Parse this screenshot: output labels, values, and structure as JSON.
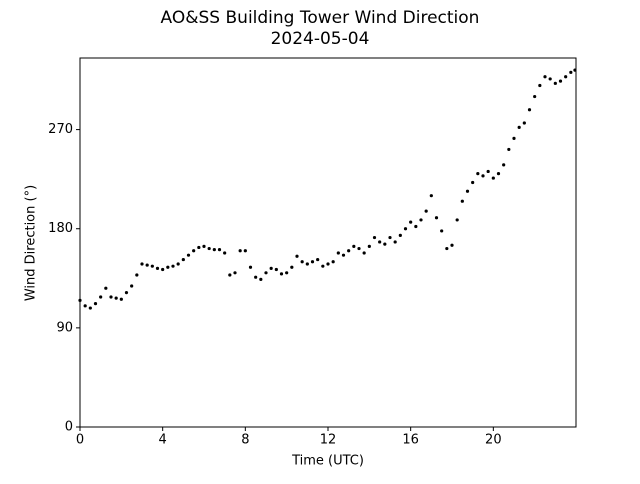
{
  "chart_data": {
    "type": "scatter",
    "title": "AO&SS Building Tower Wind Direction",
    "subtitle": "2024-05-04",
    "xlabel": "Time (UTC)",
    "ylabel": "Wind Direction (°)",
    "x": [
      0,
      0.25,
      0.5,
      0.75,
      1,
      1.25,
      1.5,
      1.75,
      2,
      2.25,
      2.5,
      2.75,
      3,
      3.25,
      3.5,
      3.75,
      4,
      4.25,
      4.5,
      4.75,
      5,
      5.25,
      5.5,
      5.75,
      6,
      6.25,
      6.5,
      6.75,
      7,
      7.25,
      7.5,
      7.75,
      8,
      8.25,
      8.5,
      8.75,
      9,
      9.25,
      9.5,
      9.75,
      10,
      10.25,
      10.5,
      10.75,
      11,
      11.25,
      11.5,
      11.75,
      12,
      12.25,
      12.5,
      12.75,
      13,
      13.25,
      13.5,
      13.75,
      14,
      14.25,
      14.5,
      14.75,
      15,
      15.25,
      15.5,
      15.75,
      16,
      16.25,
      16.5,
      16.75,
      17,
      17.25,
      17.5,
      17.75,
      18,
      18.25,
      18.5,
      18.75,
      19,
      19.25,
      19.5,
      19.75,
      20,
      20.25,
      20.5,
      20.75,
      21,
      21.25,
      21.5,
      21.75,
      22,
      22.25,
      22.5,
      22.75,
      23,
      23.25,
      23.5,
      23.75,
      23.95
    ],
    "series": [
      {
        "name": "Wind Direction",
        "color": "#000000",
        "values": [
          115,
          110,
          108,
          112,
          118,
          126,
          118,
          117,
          116,
          122,
          128,
          138,
          148,
          147,
          146,
          144,
          143,
          145,
          146,
          148,
          152,
          156,
          160,
          163,
          164,
          162,
          161,
          161,
          158,
          138,
          140,
          160,
          160,
          145,
          136,
          134,
          140,
          144,
          143,
          139,
          140,
          145,
          155,
          150,
          148,
          150,
          152,
          146,
          148,
          150,
          158,
          156,
          160,
          164,
          162,
          158,
          164,
          172,
          168,
          166,
          172,
          168,
          174,
          180,
          186,
          182,
          188,
          196,
          210,
          190,
          178,
          162,
          165,
          188,
          205,
          214,
          222,
          230,
          228,
          232,
          226,
          230,
          238,
          252,
          262,
          272,
          276,
          288,
          300,
          310,
          318,
          316,
          312,
          314,
          318,
          322,
          324
        ]
      }
    ],
    "xlim": [
      0,
      24
    ],
    "xticks": [
      0,
      4,
      8,
      12,
      16,
      20
    ],
    "ylim": [
      0,
      335
    ],
    "yticks": [
      0,
      90,
      180,
      270
    ]
  }
}
